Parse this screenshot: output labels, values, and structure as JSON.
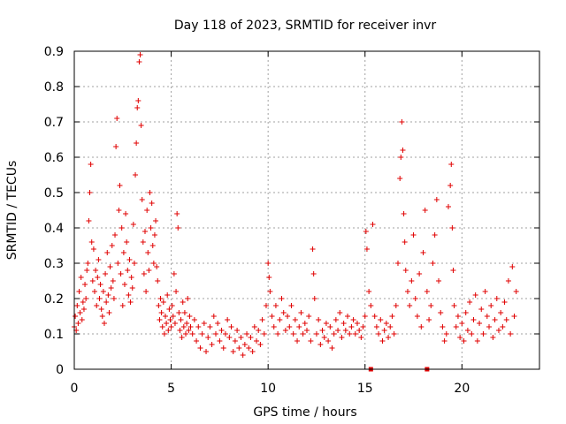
{
  "chart_data": {
    "type": "scatter",
    "title": "Day 118 of 2023, SRMTID for receiver invr",
    "xlabel": "GPS time / hours",
    "ylabel": "SRMTID / TECUs",
    "xlim": [
      0,
      24
    ],
    "ylim": [
      0,
      0.9
    ],
    "xticks": [
      0,
      5,
      10,
      15,
      20
    ],
    "xtick_labels": [
      "0",
      "5",
      "10",
      "15",
      "20"
    ],
    "yticks": [
      0,
      0.1,
      0.2,
      0.3,
      0.4,
      0.5,
      0.6,
      0.7,
      0.8,
      0.9
    ],
    "ytick_labels": [
      "0",
      "0.1",
      "0.2",
      "0.3",
      "0.4",
      "0.5",
      "0.6",
      "0.7",
      "0.8",
      "0.9"
    ],
    "grid": true,
    "marker": "+",
    "color": "#e00000",
    "series": [
      {
        "name": "SRMTID",
        "points": [
          [
            0.0,
            0.12
          ],
          [
            0.05,
            0.15
          ],
          [
            0.1,
            0.11
          ],
          [
            0.15,
            0.18
          ],
          [
            0.2,
            0.13
          ],
          [
            0.25,
            0.22
          ],
          [
            0.3,
            0.16
          ],
          [
            0.35,
            0.26
          ],
          [
            0.4,
            0.14
          ],
          [
            0.45,
            0.19
          ],
          [
            0.5,
            0.17
          ],
          [
            0.55,
            0.24
          ],
          [
            0.6,
            0.2
          ],
          [
            0.65,
            0.28
          ],
          [
            0.7,
            0.3
          ],
          [
            0.75,
            0.42
          ],
          [
            0.8,
            0.5
          ],
          [
            0.85,
            0.58
          ],
          [
            0.9,
            0.36
          ],
          [
            0.95,
            0.25
          ],
          [
            1.0,
            0.34
          ],
          [
            1.05,
            0.22
          ],
          [
            1.1,
            0.28
          ],
          [
            1.15,
            0.18
          ],
          [
            1.2,
            0.26
          ],
          [
            1.25,
            0.31
          ],
          [
            1.3,
            0.2
          ],
          [
            1.35,
            0.24
          ],
          [
            1.4,
            0.17
          ],
          [
            1.45,
            0.15
          ],
          [
            1.5,
            0.22
          ],
          [
            1.55,
            0.13
          ],
          [
            1.6,
            0.27
          ],
          [
            1.65,
            0.19
          ],
          [
            1.7,
            0.33
          ],
          [
            1.75,
            0.21
          ],
          [
            1.8,
            0.16
          ],
          [
            1.85,
            0.29
          ],
          [
            1.9,
            0.23
          ],
          [
            1.95,
            0.35
          ],
          [
            2.0,
            0.25
          ],
          [
            2.05,
            0.2
          ],
          [
            2.1,
            0.38
          ],
          [
            2.15,
            0.63
          ],
          [
            2.2,
            0.71
          ],
          [
            2.25,
            0.3
          ],
          [
            2.3,
            0.45
          ],
          [
            2.35,
            0.52
          ],
          [
            2.4,
            0.27
          ],
          [
            2.45,
            0.4
          ],
          [
            2.5,
            0.18
          ],
          [
            2.55,
            0.33
          ],
          [
            2.6,
            0.24
          ],
          [
            2.65,
            0.44
          ],
          [
            2.7,
            0.36
          ],
          [
            2.75,
            0.28
          ],
          [
            2.8,
            0.21
          ],
          [
            2.85,
            0.31
          ],
          [
            2.9,
            0.19
          ],
          [
            2.95,
            0.26
          ],
          [
            3.0,
            0.23
          ],
          [
            3.05,
            0.41
          ],
          [
            3.1,
            0.3
          ],
          [
            3.15,
            0.55
          ],
          [
            3.2,
            0.64
          ],
          [
            3.25,
            0.74
          ],
          [
            3.3,
            0.76
          ],
          [
            3.35,
            0.87
          ],
          [
            3.4,
            0.89
          ],
          [
            3.45,
            0.69
          ],
          [
            3.5,
            0.48
          ],
          [
            3.55,
            0.36
          ],
          [
            3.6,
            0.27
          ],
          [
            3.65,
            0.39
          ],
          [
            3.7,
            0.22
          ],
          [
            3.75,
            0.45
          ],
          [
            3.8,
            0.33
          ],
          [
            3.85,
            0.28
          ],
          [
            3.9,
            0.5
          ],
          [
            3.95,
            0.4
          ],
          [
            4.0,
            0.47
          ],
          [
            4.05,
            0.35
          ],
          [
            4.1,
            0.3
          ],
          [
            4.15,
            0.38
          ],
          [
            4.2,
            0.42
          ],
          [
            4.25,
            0.29
          ],
          [
            4.3,
            0.25
          ],
          [
            4.35,
            0.18
          ],
          [
            4.4,
            0.14
          ],
          [
            4.45,
            0.2
          ],
          [
            4.5,
            0.16
          ],
          [
            4.55,
            0.12
          ],
          [
            4.6,
            0.19
          ],
          [
            4.65,
            0.1
          ],
          [
            4.7,
            0.15
          ],
          [
            4.75,
            0.13
          ],
          [
            4.8,
            0.21
          ],
          [
            4.85,
            0.11
          ],
          [
            4.9,
            0.17
          ],
          [
            4.95,
            0.14
          ],
          [
            5.0,
            0.12
          ],
          [
            5.05,
            0.18
          ],
          [
            5.1,
            0.15
          ],
          [
            5.15,
            0.27
          ],
          [
            5.2,
            0.13
          ],
          [
            5.25,
            0.22
          ],
          [
            5.3,
            0.44
          ],
          [
            5.35,
            0.4
          ],
          [
            5.4,
            0.16
          ],
          [
            5.45,
            0.11
          ],
          [
            5.5,
            0.14
          ],
          [
            5.55,
            0.09
          ],
          [
            5.6,
            0.19
          ],
          [
            5.65,
            0.12
          ],
          [
            5.7,
            0.16
          ],
          [
            5.75,
            0.1
          ],
          [
            5.8,
            0.13
          ],
          [
            5.85,
            0.2
          ],
          [
            5.9,
            0.11
          ],
          [
            5.95,
            0.15
          ],
          [
            6.0,
            0.12
          ],
          [
            6.1,
            0.1
          ],
          [
            6.2,
            0.14
          ],
          [
            6.3,
            0.08
          ],
          [
            6.4,
            0.12
          ],
          [
            6.5,
            0.06
          ],
          [
            6.6,
            0.1
          ],
          [
            6.7,
            0.13
          ],
          [
            6.8,
            0.05
          ],
          [
            6.9,
            0.09
          ],
          [
            7.0,
            0.12
          ],
          [
            7.1,
            0.07
          ],
          [
            7.2,
            0.15
          ],
          [
            7.3,
            0.1
          ],
          [
            7.4,
            0.13
          ],
          [
            7.5,
            0.08
          ],
          [
            7.6,
            0.11
          ],
          [
            7.7,
            0.06
          ],
          [
            7.8,
            0.1
          ],
          [
            7.9,
            0.14
          ],
          [
            8.0,
            0.09
          ],
          [
            8.1,
            0.12
          ],
          [
            8.2,
            0.05
          ],
          [
            8.3,
            0.08
          ],
          [
            8.4,
            0.11
          ],
          [
            8.5,
            0.06
          ],
          [
            8.6,
            0.09
          ],
          [
            8.7,
            0.04
          ],
          [
            8.8,
            0.07
          ],
          [
            8.9,
            0.1
          ],
          [
            9.0,
            0.06
          ],
          [
            9.1,
            0.09
          ],
          [
            9.2,
            0.05
          ],
          [
            9.3,
            0.12
          ],
          [
            9.4,
            0.08
          ],
          [
            9.5,
            0.11
          ],
          [
            9.6,
            0.07
          ],
          [
            9.7,
            0.14
          ],
          [
            9.8,
            0.1
          ],
          [
            9.9,
            0.18
          ],
          [
            10.0,
            0.3
          ],
          [
            10.05,
            0.26
          ],
          [
            10.1,
            0.22
          ],
          [
            10.2,
            0.15
          ],
          [
            10.3,
            0.12
          ],
          [
            10.4,
            0.18
          ],
          [
            10.5,
            0.1
          ],
          [
            10.6,
            0.14
          ],
          [
            10.7,
            0.2
          ],
          [
            10.8,
            0.16
          ],
          [
            10.9,
            0.11
          ],
          [
            11.0,
            0.15
          ],
          [
            11.1,
            0.12
          ],
          [
            11.2,
            0.18
          ],
          [
            11.3,
            0.1
          ],
          [
            11.4,
            0.14
          ],
          [
            11.5,
            0.08
          ],
          [
            11.6,
            0.12
          ],
          [
            11.7,
            0.16
          ],
          [
            11.8,
            0.1
          ],
          [
            11.9,
            0.13
          ],
          [
            12.0,
            0.11
          ],
          [
            12.1,
            0.15
          ],
          [
            12.2,
            0.08
          ],
          [
            12.3,
            0.34
          ],
          [
            12.35,
            0.27
          ],
          [
            12.4,
            0.2
          ],
          [
            12.5,
            0.1
          ],
          [
            12.6,
            0.14
          ],
          [
            12.7,
            0.07
          ],
          [
            12.8,
            0.11
          ],
          [
            12.9,
            0.09
          ],
          [
            13.0,
            0.13
          ],
          [
            13.1,
            0.08
          ],
          [
            13.2,
            0.12
          ],
          [
            13.3,
            0.06
          ],
          [
            13.4,
            0.1
          ],
          [
            13.5,
            0.14
          ],
          [
            13.6,
            0.11
          ],
          [
            13.7,
            0.16
          ],
          [
            13.8,
            0.09
          ],
          [
            13.9,
            0.13
          ],
          [
            14.0,
            0.11
          ],
          [
            14.1,
            0.15
          ],
          [
            14.2,
            0.1
          ],
          [
            14.3,
            0.12
          ],
          [
            14.4,
            0.14
          ],
          [
            14.5,
            0.1
          ],
          [
            14.6,
            0.13
          ],
          [
            14.7,
            0.11
          ],
          [
            14.8,
            0.09
          ],
          [
            14.9,
            0.12
          ],
          [
            15.0,
            0.15
          ],
          [
            15.05,
            0.39
          ],
          [
            15.1,
            0.34
          ],
          [
            15.2,
            0.22
          ],
          [
            15.3,
            0.18
          ],
          [
            15.4,
            0.41
          ],
          [
            15.5,
            0.15
          ],
          [
            15.6,
            0.12
          ],
          [
            15.7,
            0.1
          ],
          [
            15.8,
            0.14
          ],
          [
            15.9,
            0.08
          ],
          [
            16.0,
            0.11
          ],
          [
            16.1,
            0.13
          ],
          [
            16.2,
            0.09
          ],
          [
            16.3,
            0.12
          ],
          [
            16.4,
            0.15
          ],
          [
            16.5,
            0.1
          ],
          [
            16.6,
            0.18
          ],
          [
            16.7,
            0.3
          ],
          [
            16.8,
            0.54
          ],
          [
            16.85,
            0.6
          ],
          [
            16.9,
            0.7
          ],
          [
            16.95,
            0.62
          ],
          [
            17.0,
            0.44
          ],
          [
            17.05,
            0.36
          ],
          [
            17.1,
            0.28
          ],
          [
            17.2,
            0.22
          ],
          [
            17.3,
            0.18
          ],
          [
            17.4,
            0.25
          ],
          [
            17.5,
            0.38
          ],
          [
            17.6,
            0.2
          ],
          [
            17.7,
            0.15
          ],
          [
            17.8,
            0.27
          ],
          [
            17.9,
            0.12
          ],
          [
            18.0,
            0.33
          ],
          [
            18.1,
            0.45
          ],
          [
            18.2,
            0.22
          ],
          [
            18.3,
            0.14
          ],
          [
            18.4,
            0.18
          ],
          [
            18.5,
            0.3
          ],
          [
            18.6,
            0.38
          ],
          [
            18.7,
            0.48
          ],
          [
            18.8,
            0.25
          ],
          [
            18.9,
            0.16
          ],
          [
            19.0,
            0.12
          ],
          [
            19.1,
            0.08
          ],
          [
            19.2,
            0.1
          ],
          [
            19.3,
            0.46
          ],
          [
            19.4,
            0.52
          ],
          [
            19.45,
            0.58
          ],
          [
            19.5,
            0.4
          ],
          [
            19.55,
            0.28
          ],
          [
            19.6,
            0.18
          ],
          [
            19.7,
            0.12
          ],
          [
            19.8,
            0.15
          ],
          [
            19.9,
            0.09
          ],
          [
            20.0,
            0.13
          ],
          [
            20.1,
            0.08
          ],
          [
            20.2,
            0.16
          ],
          [
            20.3,
            0.11
          ],
          [
            20.4,
            0.19
          ],
          [
            20.5,
            0.1
          ],
          [
            20.6,
            0.14
          ],
          [
            20.7,
            0.21
          ],
          [
            20.8,
            0.08
          ],
          [
            20.9,
            0.13
          ],
          [
            21.0,
            0.17
          ],
          [
            21.1,
            0.1
          ],
          [
            21.2,
            0.22
          ],
          [
            21.3,
            0.15
          ],
          [
            21.4,
            0.12
          ],
          [
            21.5,
            0.18
          ],
          [
            21.6,
            0.09
          ],
          [
            21.7,
            0.14
          ],
          [
            21.8,
            0.2
          ],
          [
            21.9,
            0.11
          ],
          [
            22.0,
            0.16
          ],
          [
            22.1,
            0.12
          ],
          [
            22.2,
            0.19
          ],
          [
            22.3,
            0.14
          ],
          [
            22.4,
            0.25
          ],
          [
            22.5,
            0.1
          ],
          [
            22.6,
            0.29
          ],
          [
            22.7,
            0.15
          ],
          [
            22.8,
            0.22
          ]
        ]
      }
    ],
    "baseline_markers_x": [
      15.3,
      18.2
    ]
  }
}
